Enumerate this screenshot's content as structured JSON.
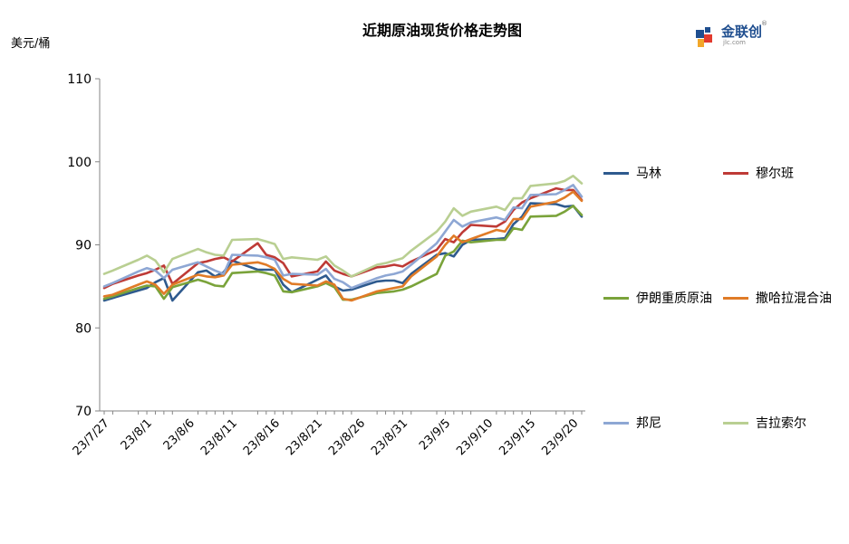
{
  "chart_data": {
    "type": "line",
    "title": "近期原油现货价格走势图",
    "ylabel": "美元/桶",
    "xlabel": "",
    "ylim": [
      70,
      110
    ],
    "yticks": [
      70,
      80,
      90,
      100,
      110
    ],
    "grid": false,
    "legend_placement": "right",
    "x_tick_labels": [
      "23/7/27",
      "23/8/1",
      "23/8/6",
      "23/8/11",
      "23/8/16",
      "23/8/21",
      "23/8/26",
      "23/8/31",
      "23/9/5",
      "23/9/10",
      "23/9/15",
      "23/9/20"
    ],
    "x": [
      "23/7/27",
      "23/7/28",
      "23/7/31",
      "23/8/1",
      "23/8/2",
      "23/8/3",
      "23/8/4",
      "23/8/7",
      "23/8/8",
      "23/8/9",
      "23/8/10",
      "23/8/11",
      "23/8/14",
      "23/8/15",
      "23/8/16",
      "23/8/17",
      "23/8/18",
      "23/8/21",
      "23/8/22",
      "23/8/23",
      "23/8/24",
      "23/8/25",
      "23/8/28",
      "23/8/29",
      "23/8/30",
      "23/8/31",
      "23/9/1",
      "23/9/4",
      "23/9/5",
      "23/9/6",
      "23/9/7",
      "23/9/8",
      "23/9/11",
      "23/9/12",
      "23/9/13",
      "23/9/14",
      "23/9/15",
      "23/9/18",
      "23/9/19",
      "23/9/20",
      "23/9/21"
    ],
    "series": [
      {
        "name": "马林",
        "color": "#2e5a8e",
        "values": [
          83.3,
          83.6,
          84.5,
          84.8,
          85.5,
          86.0,
          83.3,
          86.7,
          86.9,
          86.2,
          86.7,
          88.1,
          87.0,
          87.0,
          87.0,
          85.2,
          84.3,
          85.8,
          86.3,
          85.0,
          84.5,
          84.6,
          85.6,
          85.7,
          85.7,
          85.4,
          86.5,
          88.8,
          89.0,
          88.6,
          90.0,
          90.6,
          90.7,
          90.8,
          92.5,
          93.4,
          95.0,
          94.9,
          94.6,
          94.7,
          93.4
        ]
      },
      {
        "name": "穆尔班",
        "color": "#be3a36",
        "values": [
          84.8,
          85.3,
          86.3,
          86.6,
          87.0,
          87.5,
          85.3,
          87.8,
          88.0,
          88.3,
          88.5,
          88.0,
          90.2,
          88.8,
          88.5,
          87.8,
          86.2,
          86.8,
          88.0,
          86.9,
          86.5,
          86.2,
          87.3,
          87.4,
          87.6,
          87.4,
          88.0,
          89.4,
          90.7,
          90.3,
          91.5,
          92.4,
          92.2,
          92.8,
          94.2,
          95.1,
          95.6,
          96.8,
          96.6,
          96.6,
          95.4
        ]
      },
      {
        "name": "伊朗重质原油",
        "color": "#7aa33a",
        "values": [
          83.5,
          83.8,
          84.8,
          85.1,
          85.0,
          83.5,
          84.9,
          85.8,
          85.5,
          85.1,
          85.0,
          86.6,
          86.8,
          86.6,
          86.3,
          84.4,
          84.3,
          85.0,
          85.4,
          84.9,
          83.4,
          83.4,
          84.2,
          84.3,
          84.4,
          84.6,
          85.0,
          86.5,
          88.7,
          89.2,
          90.5,
          90.3,
          90.6,
          90.6,
          92.0,
          91.8,
          93.4,
          93.5,
          94.0,
          94.7,
          93.6
        ]
      },
      {
        "name": "撒哈拉混合油",
        "color": "#e07b27",
        "values": [
          83.8,
          84.0,
          85.2,
          85.6,
          85.2,
          84.1,
          85.2,
          86.4,
          86.2,
          86.1,
          86.3,
          87.6,
          87.9,
          87.6,
          87.1,
          85.9,
          85.3,
          85.1,
          85.6,
          85.2,
          83.5,
          83.3,
          84.4,
          84.6,
          84.8,
          85.0,
          86.2,
          88.6,
          90.0,
          91.1,
          90.3,
          90.7,
          91.8,
          91.6,
          93.1,
          93.1,
          94.6,
          95.2,
          95.7,
          96.4,
          95.3
        ]
      },
      {
        "name": "邦尼",
        "color": "#8ea7d4",
        "values": [
          85.0,
          85.4,
          86.8,
          87.2,
          86.9,
          86.0,
          87.0,
          87.9,
          87.4,
          86.9,
          86.5,
          88.8,
          88.7,
          88.5,
          88.2,
          86.3,
          86.5,
          86.4,
          87.1,
          85.9,
          85.5,
          84.8,
          86.0,
          86.3,
          86.5,
          86.8,
          87.6,
          90.2,
          91.6,
          93.0,
          92.2,
          92.7,
          93.3,
          93.0,
          94.5,
          94.4,
          96.0,
          96.1,
          96.6,
          97.2,
          95.8
        ]
      },
      {
        "name": "吉拉索尔",
        "color": "#b9cf92",
        "values": [
          86.5,
          86.9,
          88.2,
          88.7,
          88.1,
          86.7,
          88.3,
          89.5,
          89.1,
          88.8,
          88.7,
          90.6,
          90.7,
          90.4,
          90.1,
          88.3,
          88.5,
          88.2,
          88.6,
          87.5,
          86.9,
          86.2,
          87.6,
          87.8,
          88.1,
          88.4,
          89.3,
          91.6,
          92.8,
          94.4,
          93.5,
          94.0,
          94.6,
          94.2,
          95.6,
          95.6,
          97.1,
          97.4,
          97.7,
          98.3,
          97.4
        ]
      }
    ]
  },
  "logo": {
    "name": "金联创",
    "sub": "jlc.com",
    "reg": "®"
  }
}
